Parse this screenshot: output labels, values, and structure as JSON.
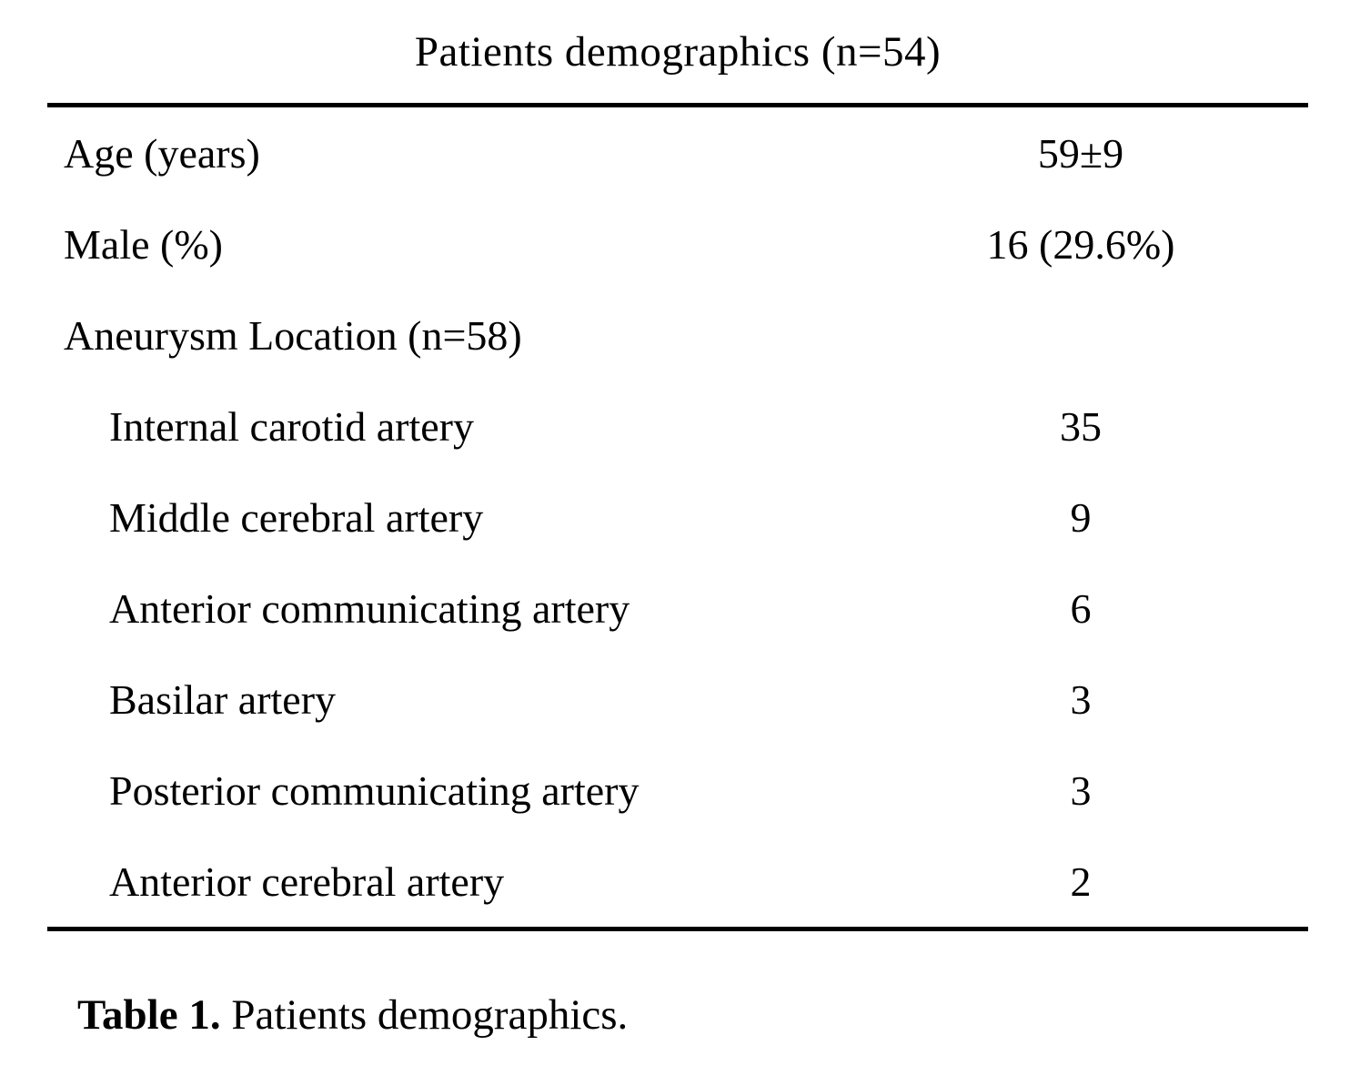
{
  "page": {
    "title": "Patients demographics (n=54)",
    "caption": {
      "label": "Table 1.",
      "text": " Patients demographics."
    }
  },
  "table": {
    "rows": [
      {
        "label": "Age (years)",
        "value": "59±9",
        "indent": false
      },
      {
        "label": "Male (%)",
        "value": "16 (29.6%)",
        "indent": false
      },
      {
        "label": "Aneurysm Location (n=58)",
        "value": "",
        "indent": false
      },
      {
        "label": "Internal carotid artery",
        "value": "35",
        "indent": true
      },
      {
        "label": "Middle cerebral artery",
        "value": "9",
        "indent": true
      },
      {
        "label": "Anterior communicating artery",
        "value": "6",
        "indent": true
      },
      {
        "label": "Basilar artery",
        "value": "3",
        "indent": true
      },
      {
        "label": "Posterior communicating artery",
        "value": "3",
        "indent": true
      },
      {
        "label": "Anterior cerebral artery",
        "value": "2",
        "indent": true
      }
    ]
  },
  "colors": {
    "text": "#000000",
    "background": "#ffffff",
    "rule": "#000000"
  }
}
